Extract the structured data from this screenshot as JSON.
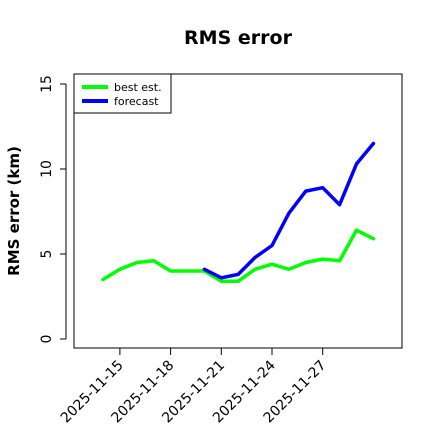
{
  "chart_data": {
    "type": "line",
    "title": "RMS error",
    "xlabel": "",
    "ylabel": "RMS error (km)",
    "x": [
      "2025-11-14",
      "2025-11-15",
      "2025-11-16",
      "2025-11-17",
      "2025-11-18",
      "2025-11-19",
      "2025-11-20",
      "2025-11-21",
      "2025-11-22",
      "2025-11-23",
      "2025-11-24",
      "2025-11-25",
      "2025-11-26",
      "2025-11-27",
      "2025-11-28",
      "2025-11-29",
      "2025-11-30"
    ],
    "x_ticks": [
      "2025-11-15",
      "2025-11-18",
      "2025-11-21",
      "2025-11-24",
      "2025-11-27"
    ],
    "ylim": [
      0,
      15
    ],
    "y_ticks": [
      0,
      5,
      10,
      15
    ],
    "grid": false,
    "legend_position": "top-left",
    "series": [
      {
        "name": "best est.",
        "color": "#00ff00",
        "values": [
          3.5,
          4.1,
          4.5,
          4.6,
          4.0,
          4.0,
          4.0,
          3.4,
          3.4,
          4.1,
          4.4,
          4.1,
          4.5,
          4.7,
          4.6,
          6.4,
          5.9
        ]
      },
      {
        "name": "forecast",
        "color": "#0000ff",
        "values": [
          null,
          null,
          null,
          null,
          null,
          null,
          4.1,
          3.6,
          3.8,
          4.8,
          5.5,
          7.4,
          8.7,
          8.9,
          7.9,
          10.3,
          11.5
        ]
      }
    ]
  }
}
